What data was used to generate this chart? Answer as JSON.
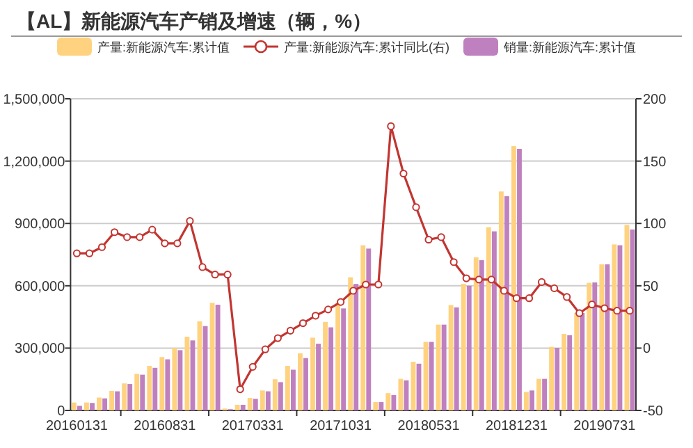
{
  "chart_data": {
    "type": "bar",
    "title": "【AL】新能源汽车产销及增速（辆，%）",
    "categories": [
      "20160131",
      null,
      null,
      null,
      null,
      null,
      null,
      "20160831",
      null,
      null,
      null,
      null,
      null,
      null,
      "20170331",
      null,
      null,
      null,
      null,
      null,
      null,
      "20171031",
      null,
      null,
      null,
      null,
      null,
      null,
      "20180531",
      null,
      null,
      null,
      null,
      null,
      null,
      "20181231",
      null,
      null,
      null,
      null,
      null,
      null,
      "20190731",
      null,
      null
    ],
    "series": [
      {
        "name": "产量:新能源汽车:累计值",
        "color": "#ffd280",
        "values": [
          38000,
          38000,
          62000,
          94000,
          130000,
          176000,
          214000,
          257000,
          301000,
          355000,
          429000,
          518000,
          9000,
          27000,
          60000,
          96000,
          150000,
          214000,
          275000,
          350000,
          426000,
          518000,
          641000,
          795000,
          40000,
          83000,
          152000,
          234000,
          330000,
          413000,
          507000,
          609000,
          737000,
          882000,
          1054000,
          1272000,
          89000,
          152000,
          306000,
          368000,
          469000,
          614000,
          703000,
          799000,
          893000
        ]
      },
      {
        "name": "产量:新能源汽车:累计同比(右)",
        "type": "line",
        "axis": "y2",
        "color": "#c23531",
        "values": [
          76,
          76,
          81,
          93,
          89,
          89,
          95,
          84,
          84,
          102,
          65,
          59,
          59,
          -33,
          -15,
          -1,
          8,
          14,
          20,
          26,
          31,
          37,
          46,
          51,
          51,
          178,
          140,
          113,
          87,
          89,
          69,
          56,
          55,
          55,
          46,
          40,
          40,
          53,
          48,
          41,
          28,
          35,
          32,
          30,
          30
        ]
      },
      {
        "name": "销量:新能源汽车:累计值",
        "color": "#bf80bf",
        "values": [
          22000,
          36000,
          58000,
          92000,
          127000,
          172000,
          205000,
          246000,
          290000,
          337000,
          406000,
          509000,
          6000,
          27000,
          56000,
          92000,
          136000,
          196000,
          252000,
          321000,
          400000,
          491000,
          609000,
          779000,
          40000,
          74000,
          145000,
          225000,
          330000,
          413000,
          496000,
          600000,
          723000,
          862000,
          1031000,
          1259000,
          96000,
          152000,
          301000,
          362000,
          469000,
          616000,
          703000,
          795000,
          871000
        ]
      }
    ],
    "ylim": [
      0,
      1500000
    ],
    "yticks": [
      0,
      {
        "value": 300000,
        "label": "300,000"
      },
      {
        "value": 600000,
        "label": "600,000"
      },
      {
        "value": 900000,
        "label": "900,000"
      },
      {
        "value": 1200000,
        "label": "1,200,000"
      },
      {
        "value": 1500000,
        "label": "1,500,000"
      }
    ],
    "y2lim": [
      -50,
      200
    ],
    "y2ticks": [
      -50,
      0,
      50,
      100,
      150,
      200
    ],
    "grid": "y",
    "legend": "top",
    "marker": "circle",
    "line_style": "solid"
  }
}
